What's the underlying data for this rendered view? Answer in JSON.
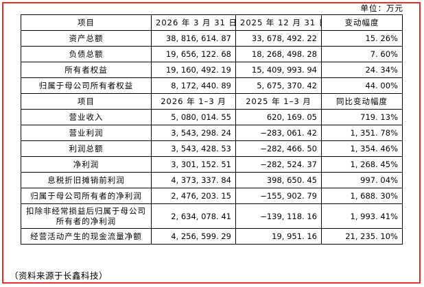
{
  "unit_label": "单位：万元",
  "table": {
    "header1": [
      "项目",
      "2026 年 3 月 31 日",
      "2025 年 12 月 31 日",
      "变动幅度"
    ],
    "balance_rows": [
      {
        "label": "资产总额",
        "a": "38, 816, 614. 87",
        "b": "33, 678, 492. 22",
        "c": "15. 26%"
      },
      {
        "label": "负债总额",
        "a": "19, 656, 122. 68",
        "b": "18, 268, 498. 28",
        "c": "7. 60%"
      },
      {
        "label": "所有者权益",
        "a": "19, 160, 492. 19",
        "b": "15, 409, 993. 94",
        "c": "24. 34%"
      },
      {
        "label": "归属于母公司所有者权益",
        "a": "8, 172, 440. 89",
        "b": "5, 675, 370. 42",
        "c": "44. 00%"
      }
    ],
    "header2": [
      "项目",
      "2026 年 1–3 月",
      "2025 年 1–3 月",
      "同比变动幅度"
    ],
    "income_rows": [
      {
        "label": "营业收入",
        "a": "5, 080, 014. 55",
        "b": "620, 169. 05",
        "c": "719. 13%"
      },
      {
        "label": "营业利润",
        "a": "3, 543, 298. 24",
        "b": "−283, 061. 42",
        "c": "1, 351. 78%"
      },
      {
        "label": "利润总额",
        "a": "3, 543, 428. 53",
        "b": "−282, 466. 50",
        "c": "1, 354. 46%"
      },
      {
        "label": "净利润",
        "a": "3, 301, 152. 51",
        "b": "−282, 524. 37",
        "c": "1, 268. 45%"
      },
      {
        "label": "息税折旧摊销前利润",
        "a": "4, 373, 337. 84",
        "b": "398, 650. 45",
        "c": "997. 04%"
      },
      {
        "label": "归属于母公司所有者的净利润",
        "a": "2, 476, 203. 15",
        "b": "−155, 902. 79",
        "c": "1, 688. 30%"
      },
      {
        "label_line1": "扣除非经常损益后归属于母公司",
        "label_line2": "所有者的净利润",
        "a": "2, 634, 078. 41",
        "b": "−139, 118. 16",
        "c": "1, 993. 41%"
      },
      {
        "label": "经营活动产生的现金流量净额",
        "a": "4, 256, 599. 29",
        "b": "19, 951. 16",
        "c": "21, 235. 10%"
      }
    ]
  },
  "source_note": "（资料来源于长鑫科技）",
  "colors": {
    "frame_border": "#e0302a"
  }
}
